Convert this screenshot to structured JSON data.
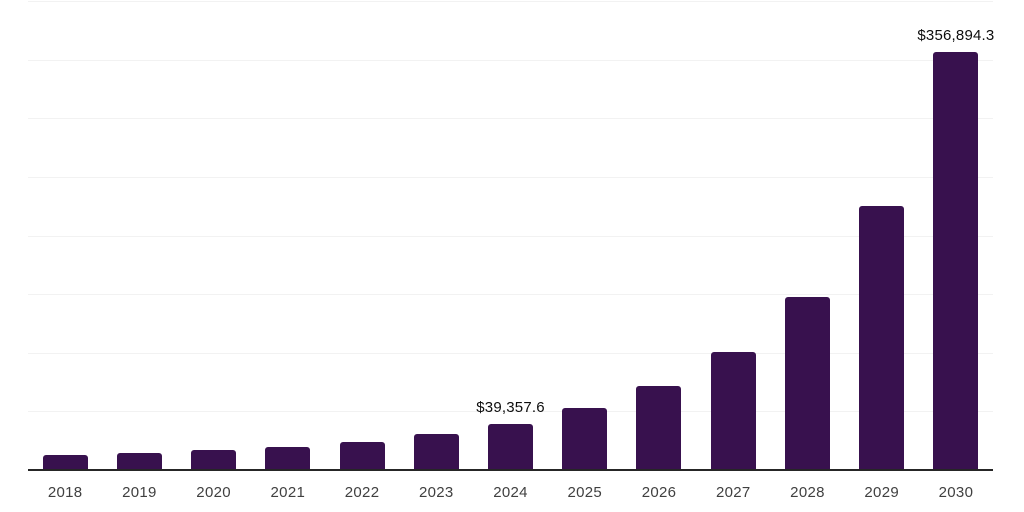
{
  "chart_data": {
    "type": "bar",
    "title": "",
    "xlabel": "",
    "ylabel": "",
    "categories": [
      "2018",
      "2019",
      "2020",
      "2021",
      "2022",
      "2023",
      "2024",
      "2025",
      "2026",
      "2027",
      "2028",
      "2029",
      "2030"
    ],
    "values": [
      12500,
      14800,
      17000,
      19900,
      23800,
      30400,
      39357.6,
      53100,
      71500,
      100800,
      147700,
      225400,
      356894.3
    ],
    "data_labels": [
      {
        "category": "2024",
        "text": "$39,357.6"
      },
      {
        "category": "2030",
        "text": "$356,894.3"
      }
    ],
    "ylim": [
      0,
      400000
    ],
    "gridline_interval": 50000,
    "grid_on": true,
    "legend_position": "none",
    "colors": {
      "bar": "#38114e",
      "gridline": "#f2f2f2",
      "axis_line": "#262626",
      "tick_label": "#404040",
      "data_label": "#0d0d0d",
      "background": "#ffffff"
    }
  }
}
